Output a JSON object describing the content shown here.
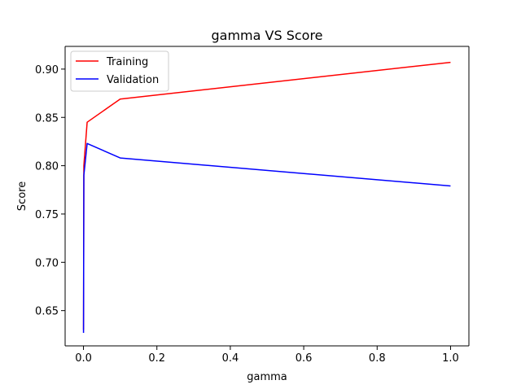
{
  "chart_data": {
    "type": "line",
    "title": "gamma VS Score",
    "xlabel": "gamma",
    "ylabel": "Score",
    "xlim": [
      -0.05,
      1.05
    ],
    "ylim": [
      0.6135,
      0.9235
    ],
    "xticks": [
      0.0,
      0.2,
      0.4,
      0.6,
      0.8,
      1.0
    ],
    "xtick_labels": [
      "0.0",
      "0.2",
      "0.4",
      "0.6",
      "0.8",
      "1.0"
    ],
    "yticks": [
      0.65,
      0.7,
      0.75,
      0.8,
      0.85,
      0.9
    ],
    "ytick_labels": [
      "0.65",
      "0.70",
      "0.75",
      "0.80",
      "0.85",
      "0.90"
    ],
    "grid": false,
    "legend_position": "upper-left",
    "x": [
      0.0001,
      0.001,
      0.01,
      0.1,
      1.0
    ],
    "series": [
      {
        "name": "Training",
        "color": "#ff0000",
        "values": [
          0.63,
          0.8,
          0.845,
          0.869,
          0.907
        ]
      },
      {
        "name": "Validation",
        "color": "#0000ff",
        "values": [
          0.627,
          0.79,
          0.823,
          0.808,
          0.779
        ]
      }
    ]
  }
}
